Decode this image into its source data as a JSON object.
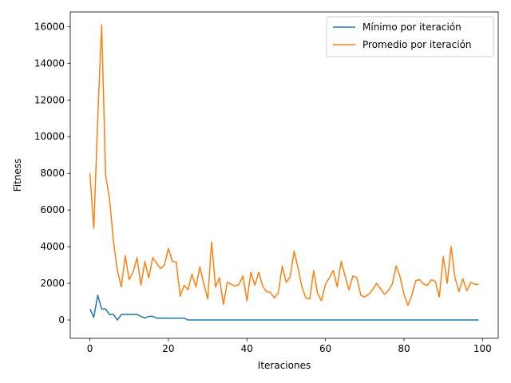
{
  "chart_data": {
    "type": "line",
    "title": "",
    "xlabel": "Iteraciones",
    "ylabel": "Fitness",
    "xlim": [
      -5,
      104
    ],
    "ylim": [
      -1000,
      16800
    ],
    "xticks": [
      0,
      20,
      40,
      60,
      80,
      100
    ],
    "yticks": [
      0,
      2000,
      4000,
      6000,
      8000,
      10000,
      12000,
      14000,
      16000
    ],
    "grid": false,
    "legend_position": "top-right",
    "x": [
      0,
      1,
      2,
      3,
      4,
      5,
      6,
      7,
      8,
      9,
      10,
      11,
      12,
      13,
      14,
      15,
      16,
      17,
      18,
      19,
      20,
      21,
      22,
      23,
      24,
      25,
      26,
      27,
      28,
      29,
      30,
      31,
      32,
      33,
      34,
      35,
      36,
      37,
      38,
      39,
      40,
      41,
      42,
      43,
      44,
      45,
      46,
      47,
      48,
      49,
      50,
      51,
      52,
      53,
      54,
      55,
      56,
      57,
      58,
      59,
      60,
      61,
      62,
      63,
      64,
      65,
      66,
      67,
      68,
      69,
      70,
      71,
      72,
      73,
      74,
      75,
      76,
      77,
      78,
      79,
      80,
      81,
      82,
      83,
      84,
      85,
      86,
      87,
      88,
      89,
      90,
      91,
      92,
      93,
      94,
      95,
      96,
      97,
      98,
      99
    ],
    "series": [
      {
        "name": "Mínimo por iteración",
        "color": "#1f77b4",
        "values": [
          600,
          150,
          1350,
          600,
          600,
          300,
          300,
          0,
          300,
          300,
          300,
          300,
          300,
          200,
          100,
          200,
          200,
          100,
          100,
          100,
          100,
          100,
          100,
          100,
          100,
          0,
          0,
          0,
          0,
          0,
          0,
          0,
          0,
          0,
          0,
          0,
          0,
          0,
          0,
          0,
          0,
          0,
          0,
          0,
          0,
          0,
          0,
          0,
          0,
          0,
          0,
          0,
          0,
          0,
          0,
          0,
          0,
          0,
          0,
          0,
          0,
          0,
          0,
          0,
          0,
          0,
          0,
          0,
          0,
          0,
          0,
          0,
          0,
          0,
          0,
          0,
          0,
          0,
          0,
          0,
          0,
          0,
          0,
          0,
          0,
          0,
          0,
          0,
          0,
          0,
          0,
          0,
          0,
          0,
          0,
          0,
          0,
          0,
          0,
          0
        ]
      },
      {
        "name": "Promedio por iteración",
        "color": "#ff7f0e",
        "values": [
          8000,
          5000,
          11000,
          16100,
          7900,
          6600,
          4300,
          2700,
          1800,
          3500,
          2200,
          2600,
          3400,
          1900,
          3200,
          2300,
          3400,
          3100,
          2800,
          3000,
          3900,
          3200,
          3150,
          1300,
          1900,
          1650,
          2500,
          1800,
          2900,
          2000,
          1150,
          4250,
          1800,
          2300,
          850,
          2050,
          1950,
          1850,
          1950,
          2400,
          1050,
          2600,
          1900,
          2600,
          1850,
          1550,
          1500,
          1200,
          1500,
          2950,
          2050,
          2350,
          3750,
          2850,
          1800,
          1200,
          1150,
          2700,
          1450,
          1050,
          1950,
          2300,
          2700,
          1800,
          3200,
          2400,
          1650,
          2400,
          2300,
          1350,
          1250,
          1400,
          1650,
          2000,
          1700,
          1400,
          1600,
          1950,
          2950,
          2350,
          1400,
          800,
          1350,
          2150,
          2200,
          1950,
          1900,
          2200,
          2100,
          1250,
          3450,
          2000,
          4000,
          2300,
          1550,
          2250,
          1600,
          2050,
          1950,
          1950
        ]
      }
    ]
  }
}
